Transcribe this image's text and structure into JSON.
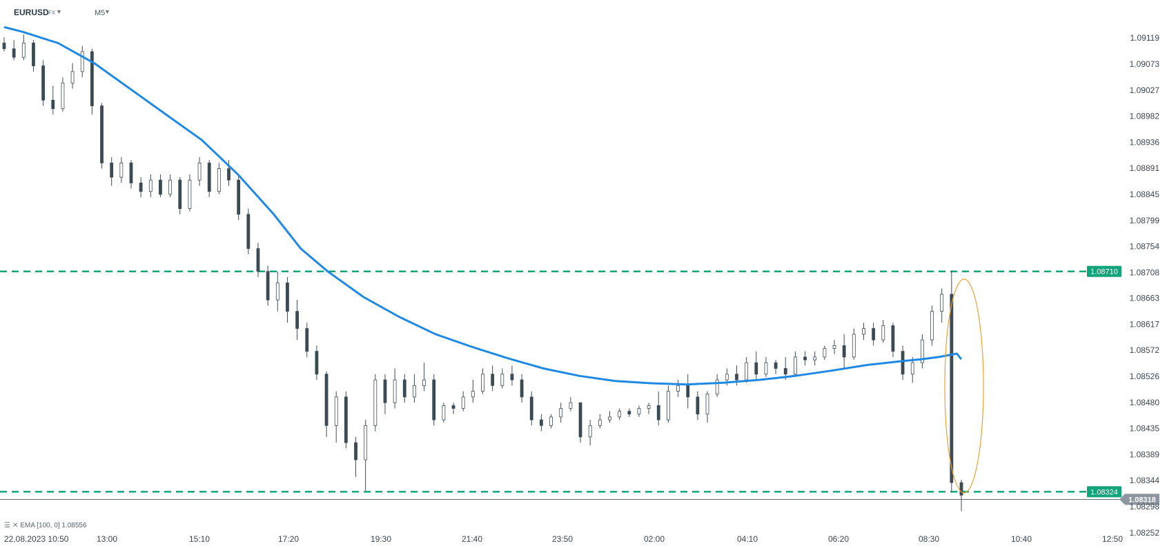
{
  "toolbar": {
    "symbol": "EURUSD",
    "market": "FX",
    "timeframe": "M5",
    "dropdown_icon": "caret-down-icon"
  },
  "indicator_legend": {
    "text": "EMA [100, 0] 1.08556",
    "icons": [
      "menu-icon",
      "close-icon"
    ]
  },
  "colors": {
    "ema": "#1e88e5",
    "level_line": "#0fa47a",
    "candle": "#3c4a54",
    "ellipse": "#f0a030",
    "current_price_tag": "#8d969e"
  },
  "chart_data": {
    "type": "candlestick",
    "symbol": "EURUSD",
    "timeframe": "M5",
    "y_axis": {
      "ticks": [
        "1.09119",
        "1.09073",
        "1.09027",
        "1.08982",
        "1.08936",
        "1.08891",
        "1.08845",
        "1.08799",
        "1.08754",
        "1.08708",
        "1.08663",
        "1.08617",
        "1.08572",
        "1.08526",
        "1.08480",
        "1.08435",
        "1.08389",
        "1.08344",
        "1.08298",
        "1.08252"
      ],
      "range": [
        1.08252,
        1.0914
      ]
    },
    "x_axis": {
      "ticks": [
        "22.08.2023 10:50",
        "13:00",
        "15:10",
        "17:20",
        "19:30",
        "21:40",
        "23:50",
        "02:00",
        "04:10",
        "06:20",
        "08:30",
        "10:40",
        "12:50"
      ]
    },
    "levels": [
      {
        "value": 1.0871,
        "label": "1.08710"
      },
      {
        "value": 1.08324,
        "label": "1.08324"
      }
    ],
    "current_price": {
      "value": 1.08318,
      "label": "1.08318"
    },
    "ema": {
      "name": "EMA [100, 0]",
      "last": 1.08556,
      "points": [
        [
          0,
          1.09138
        ],
        [
          20,
          1.0913
        ],
        [
          60,
          1.0911
        ],
        [
          100,
          1.09075
        ],
        [
          140,
          1.0903
        ],
        [
          180,
          1.08985
        ],
        [
          220,
          1.0894
        ],
        [
          260,
          1.0888
        ],
        [
          300,
          1.0881
        ],
        [
          330,
          1.0875
        ],
        [
          360,
          1.0871
        ],
        [
          400,
          1.08665
        ],
        [
          440,
          1.0863
        ],
        [
          480,
          1.086
        ],
        [
          520,
          1.08578
        ],
        [
          560,
          1.08558
        ],
        [
          600,
          1.0854
        ],
        [
          640,
          1.08527
        ],
        [
          680,
          1.08518
        ],
        [
          720,
          1.08514
        ],
        [
          760,
          1.08512
        ],
        [
          800,
          1.08515
        ],
        [
          840,
          1.0852
        ],
        [
          880,
          1.08527
        ],
        [
          920,
          1.08536
        ],
        [
          960,
          1.08546
        ],
        [
          1000,
          1.08553
        ],
        [
          1020,
          1.08556
        ],
        [
          1040,
          1.0856
        ],
        [
          1060,
          1.08566
        ],
        [
          1065,
          1.08556
        ]
      ]
    },
    "candles": [
      [
        0,
        1.0911,
        1.0912,
        1.09095,
        1.091
      ],
      [
        4,
        1.091,
        1.09115,
        1.0908,
        1.09085
      ],
      [
        8,
        1.09085,
        1.09125,
        1.0908,
        1.0911
      ],
      [
        12,
        1.0911,
        1.09115,
        1.0906,
        1.0907
      ],
      [
        16,
        1.0907,
        1.0908,
        1.09,
        1.0901
      ],
      [
        20,
        1.0901,
        1.09035,
        1.08985,
        1.08995
      ],
      [
        24,
        1.08995,
        1.0905,
        1.0899,
        1.0904
      ],
      [
        28,
        1.0904,
        1.09075,
        1.0903,
        1.0906
      ],
      [
        32,
        1.0906,
        1.09105,
        1.0905,
        1.09095
      ],
      [
        36,
        1.09095,
        1.091,
        1.08985,
        1.09
      ],
      [
        40,
        1.09,
        1.09005,
        1.0889,
        1.089
      ],
      [
        44,
        1.089,
        1.0891,
        1.0886,
        1.08875
      ],
      [
        48,
        1.08875,
        1.0891,
        1.08865,
        1.089
      ],
      [
        52,
        1.089,
        1.08905,
        1.08855,
        1.08865
      ],
      [
        56,
        1.08865,
        1.08875,
        1.0884,
        1.0885
      ],
      [
        60,
        1.0885,
        1.0888,
        1.0884,
        1.0887
      ],
      [
        64,
        1.0887,
        1.0888,
        1.0884,
        1.08845
      ],
      [
        68,
        1.08845,
        1.0888,
        1.0884,
        1.0887
      ],
      [
        72,
        1.0887,
        1.08875,
        1.0881,
        1.0882
      ],
      [
        76,
        1.0882,
        1.0888,
        1.08815,
        1.0887
      ],
      [
        80,
        1.0887,
        1.0891,
        1.0886,
        1.089
      ],
      [
        84,
        1.089,
        1.08905,
        1.0884,
        1.0885
      ],
      [
        88,
        1.0885,
        1.089,
        1.08845,
        1.0889
      ],
      [
        92,
        1.0889,
        1.08905,
        1.0886,
        1.0887
      ],
      [
        96,
        1.0887,
        1.0888,
        1.088,
        1.0881
      ],
      [
        100,
        1.0881,
        1.0882,
        1.0874,
        1.0875
      ],
      [
        104,
        1.0875,
        1.0876,
        1.087,
        1.0871
      ],
      [
        108,
        1.0871,
        1.0872,
        1.0865,
        1.0866
      ],
      [
        112,
        1.0866,
        1.0871,
        1.0864,
        1.0869
      ],
      [
        116,
        1.0869,
        1.087,
        1.0862,
        1.0864
      ],
      [
        120,
        1.0864,
        1.0866,
        1.0859,
        1.0861
      ],
      [
        124,
        1.0861,
        1.0862,
        1.0856,
        1.0857
      ],
      [
        128,
        1.0857,
        1.0858,
        1.0852,
        1.0853
      ],
      [
        132,
        1.0853,
        1.08535,
        1.0842,
        1.0844
      ],
      [
        136,
        1.0844,
        1.085,
        1.0841,
        1.0849
      ],
      [
        140,
        1.0849,
        1.085,
        1.084,
        1.0841
      ],
      [
        144,
        1.0841,
        1.0842,
        1.0835,
        1.0838
      ],
      [
        148,
        1.0838,
        1.0845,
        1.08326,
        1.0844
      ],
      [
        152,
        1.0844,
        1.0853,
        1.0843,
        1.0852
      ],
      [
        156,
        1.0852,
        1.0853,
        1.0846,
        1.0848
      ],
      [
        160,
        1.0848,
        1.0854,
        1.0847,
        1.0852
      ],
      [
        164,
        1.0852,
        1.0853,
        1.0848,
        1.0849
      ],
      [
        168,
        1.0849,
        1.0853,
        1.0848,
        1.0851
      ],
      [
        172,
        1.0851,
        1.0855,
        1.085,
        1.0852
      ],
      [
        176,
        1.0852,
        1.0853,
        1.0844,
        1.0845
      ],
      [
        180,
        1.0845,
        1.0848,
        1.08445,
        1.08475
      ],
      [
        184,
        1.08475,
        1.0848,
        1.0846,
        1.0847
      ],
      [
        188,
        1.0847,
        1.085,
        1.08465,
        1.0849
      ],
      [
        192,
        1.0849,
        1.0852,
        1.0848,
        1.085
      ],
      [
        196,
        1.085,
        1.0854,
        1.08495,
        1.0853
      ],
      [
        200,
        1.0853,
        1.08545,
        1.085,
        1.0851
      ],
      [
        204,
        1.0851,
        1.0854,
        1.08505,
        1.0853
      ],
      [
        208,
        1.0853,
        1.08545,
        1.0851,
        1.0852
      ],
      [
        212,
        1.0852,
        1.0853,
        1.0848,
        1.0849
      ],
      [
        216,
        1.0849,
        1.085,
        1.0844,
        1.0845
      ],
      [
        220,
        1.0845,
        1.0846,
        1.0843,
        1.0844
      ],
      [
        224,
        1.0844,
        1.0846,
        1.08435,
        1.08455
      ],
      [
        228,
        1.08455,
        1.0848,
        1.08445,
        1.0847
      ],
      [
        232,
        1.0847,
        1.0849,
        1.08465,
        1.0848
      ],
      [
        236,
        1.0848,
        1.0848,
        1.0841,
        1.0842
      ],
      [
        240,
        1.0842,
        1.0845,
        1.08405,
        1.0844
      ],
      [
        244,
        1.0844,
        1.0846,
        1.08435,
        1.0845
      ],
      [
        248,
        1.0845,
        1.08465,
        1.08445,
        1.08455
      ],
      [
        252,
        1.08455,
        1.0847,
        1.0845,
        1.08465
      ],
      [
        256,
        1.08465,
        1.0847,
        1.08455,
        1.0846
      ],
      [
        260,
        1.0846,
        1.08475,
        1.08455,
        1.0847
      ],
      [
        264,
        1.0847,
        1.0848,
        1.0846,
        1.08475
      ],
      [
        268,
        1.08475,
        1.085,
        1.0844,
        1.0845
      ],
      [
        272,
        1.0845,
        1.0851,
        1.08445,
        1.085
      ],
      [
        276,
        1.085,
        1.0852,
        1.0849,
        1.0851
      ],
      [
        280,
        1.0851,
        1.0853,
        1.0847,
        1.0849
      ],
      [
        284,
        1.0849,
        1.085,
        1.0845,
        1.0846
      ],
      [
        288,
        1.0846,
        1.085,
        1.08445,
        1.08495
      ],
      [
        292,
        1.08495,
        1.0853,
        1.0849,
        1.0852
      ],
      [
        296,
        1.0852,
        1.0854,
        1.0851,
        1.0853
      ],
      [
        300,
        1.0853,
        1.08545,
        1.0851,
        1.0852
      ],
      [
        304,
        1.0852,
        1.0856,
        1.08515,
        1.0855
      ],
      [
        308,
        1.0855,
        1.0857,
        1.0852,
        1.0853
      ],
      [
        312,
        1.0853,
        1.0856,
        1.08525,
        1.0855
      ],
      [
        316,
        1.0855,
        1.08555,
        1.0853,
        1.0854
      ],
      [
        320,
        1.0854,
        1.0856,
        1.0852,
        1.0853
      ],
      [
        324,
        1.0853,
        1.0857,
        1.08525,
        1.0856
      ],
      [
        328,
        1.0856,
        1.0857,
        1.08545,
        1.08555
      ],
      [
        332,
        1.08555,
        1.0857,
        1.08545,
        1.0856
      ],
      [
        336,
        1.0856,
        1.0858,
        1.08555,
        1.08575
      ],
      [
        340,
        1.08575,
        1.0859,
        1.08565,
        1.0858
      ],
      [
        344,
        1.0858,
        1.086,
        1.0854,
        1.0856
      ],
      [
        348,
        1.0856,
        1.0861,
        1.08555,
        1.086
      ],
      [
        352,
        1.086,
        1.0862,
        1.0859,
        1.0861
      ],
      [
        356,
        1.0861,
        1.0862,
        1.0858,
        1.0859
      ],
      [
        360,
        1.0859,
        1.08625,
        1.08585,
        1.08615
      ],
      [
        364,
        1.08615,
        1.0862,
        1.0856,
        1.0857
      ],
      [
        368,
        1.0857,
        1.0858,
        1.0852,
        1.0853
      ],
      [
        372,
        1.0853,
        1.0856,
        1.08515,
        1.0855
      ],
      [
        376,
        1.0855,
        1.086,
        1.0854,
        1.0859
      ],
      [
        380,
        1.0859,
        1.0865,
        1.0858,
        1.0864
      ],
      [
        384,
        1.0864,
        1.0868,
        1.0862,
        1.0867
      ],
      [
        388,
        1.0867,
        1.0871,
        1.08324,
        1.0834
      ],
      [
        392,
        1.0834,
        1.08345,
        1.0829,
        1.08318
      ]
    ]
  }
}
